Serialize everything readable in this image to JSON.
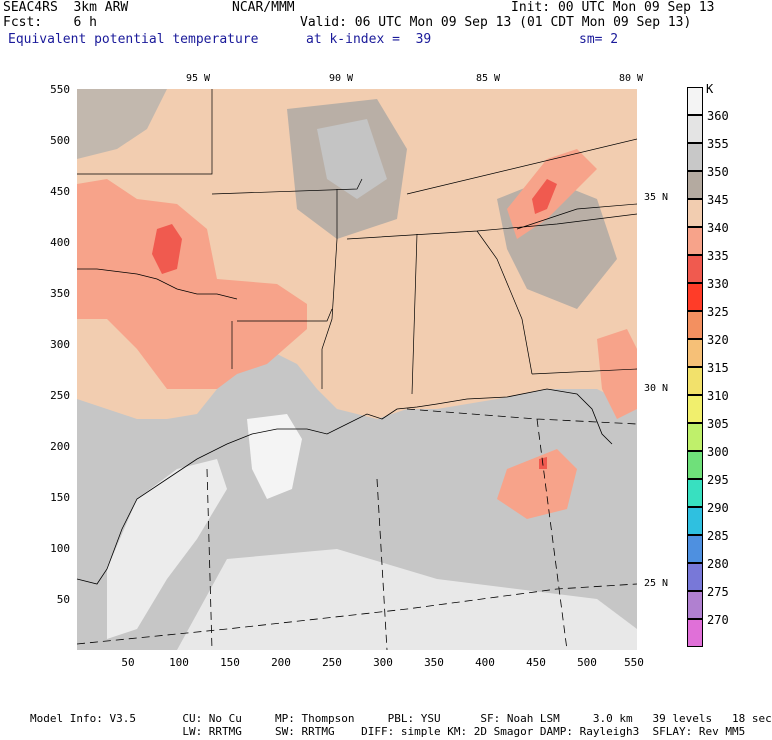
{
  "header": {
    "line1_left": "SEAC4RS  3km ARW",
    "line1_mid": "NCAR/MMM",
    "line1_right": "Init: 00 UTC Mon 09 Sep 13",
    "line2_left": "Fcst:    6 h",
    "line2_right": "Valid: 06 UTC Mon 09 Sep 13 (01 CDT Mon 09 Sep 13)",
    "line3_field": "Equivalent potential temperature",
    "line3_level": "at k-index =  39",
    "line3_smooth": "sm= 2"
  },
  "axes": {
    "y_ticks": [
      "550",
      "500",
      "450",
      "400",
      "350",
      "300",
      "250",
      "200",
      "150",
      "100",
      "50"
    ],
    "x_ticks": [
      "50",
      "100",
      "150",
      "200",
      "250",
      "300",
      "350",
      "400",
      "450",
      "500",
      "550"
    ],
    "lon_labels": [
      "95 W",
      "90 W",
      "85 W",
      "80 W"
    ],
    "lat_labels": [
      "35 N",
      "30 N",
      "25 N"
    ]
  },
  "legend": {
    "unit": "K",
    "levels": [
      "360",
      "355",
      "350",
      "345",
      "340",
      "335",
      "330",
      "325",
      "320",
      "315",
      "310",
      "305",
      "300",
      "295",
      "290",
      "285",
      "280",
      "275",
      "270"
    ],
    "colors": [
      "#f4f4f4",
      "#e4e4e4",
      "#c8c8c8",
      "#b4aaa0",
      "#f2cdb0",
      "#f7a38a",
      "#f05a4f",
      "#ff3c28",
      "#f39060",
      "#f6c077",
      "#f2e16b",
      "#f1ef6d",
      "#bff06b",
      "#6fe07a",
      "#38e0c0",
      "#2fc0e0",
      "#4e90e0",
      "#7878d8",
      "#b080d0",
      "#e070d8"
    ]
  },
  "footer": {
    "line1": "Model Info: V3.5       CU: No Cu     MP: Thompson     PBL: YSU      SF: Noah LSM     3.0 km   39 levels   18 sec",
    "line2": "                       LW: RRTMG     SW: RRTMG    DIFF: simple KM: 2D Smagor DAMP: Rayleigh3  SFLAY: Rev MM5"
  }
}
